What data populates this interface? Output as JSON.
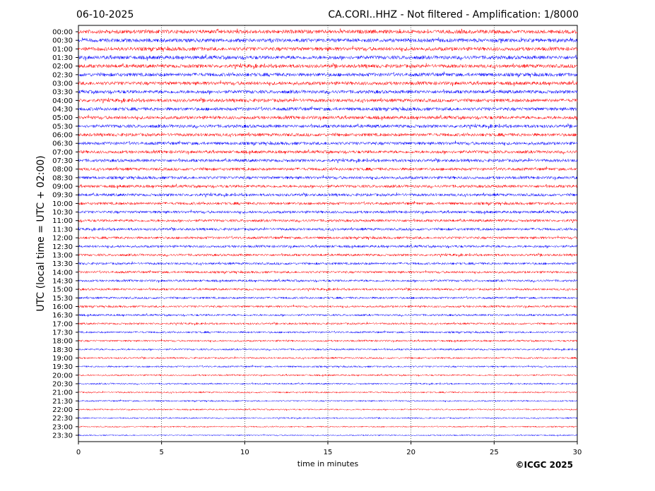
{
  "chart_data": {
    "type": "helicorder",
    "date": "06-10-2025",
    "title": "CA.CORI..HHZ - Not filtered - Amplification: 1/8000",
    "x_label": "time in minutes",
    "y_label": "UTC (local time = UTC + 02:00)",
    "copyright": "©ICGC 2025",
    "categories": [
      "00:00",
      "00:30",
      "01:00",
      "01:30",
      "02:00",
      "02:30",
      "03:00",
      "03:30",
      "04:00",
      "04:30",
      "05:00",
      "05:30",
      "06:00",
      "06:30",
      "07:00",
      "07:30",
      "08:00",
      "08:30",
      "09:00",
      "09:30",
      "10:00",
      "10:30",
      "11:00",
      "11:30",
      "12:00",
      "12:30",
      "13:00",
      "13:30",
      "14:00",
      "14:30",
      "15:00",
      "15:30",
      "16:00",
      "16:30",
      "17:00",
      "17:30",
      "18:00",
      "18:30",
      "19:00",
      "19:30",
      "20:00",
      "20:30",
      "21:00",
      "21:30",
      "22:00",
      "22:30",
      "23:00",
      "23:30"
    ],
    "colors": [
      "#ff0000",
      "#0000ff"
    ],
    "xlim": [
      0,
      30
    ],
    "xticks": [
      0,
      5,
      10,
      15,
      20,
      25,
      30
    ],
    "grid": true
  }
}
